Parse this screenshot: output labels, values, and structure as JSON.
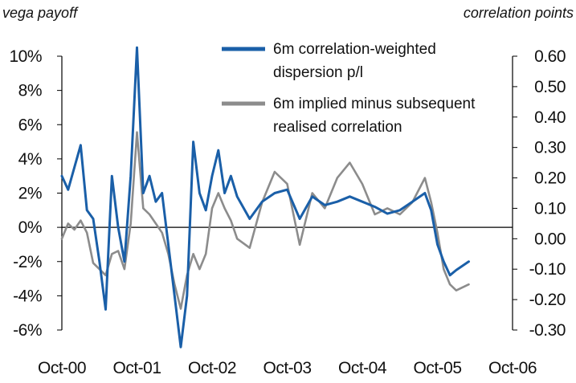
{
  "chart_data": {
    "type": "line",
    "left_axis_title": "vega payoff",
    "right_axis_title": "correlation points",
    "x_tick_labels": [
      "Oct-00",
      "Oct-01",
      "Oct-02",
      "Oct-03",
      "Oct-04",
      "Oct-05",
      "Oct-06"
    ],
    "x_range": [
      "Oct-00",
      "Oct-06"
    ],
    "y_left": {
      "range": [
        -0.06,
        0.1
      ],
      "ticks": [
        0.1,
        0.08,
        0.06,
        0.04,
        0.02,
        0.0,
        -0.02,
        -0.04,
        -0.06
      ],
      "tick_labels": [
        "10%",
        "8%",
        "6%",
        "4%",
        "2%",
        "0%",
        "-2%",
        "-4%",
        "-6%"
      ]
    },
    "y_right": {
      "range": [
        -0.3,
        0.6
      ],
      "ticks": [
        0.6,
        0.5,
        0.4,
        0.3,
        0.2,
        0.1,
        0.0,
        -0.1,
        -0.2,
        -0.3
      ],
      "tick_labels": [
        "0.60",
        "0.50",
        "0.40",
        "0.30",
        "0.20",
        "0.10",
        "0.00",
        "-0.10",
        "-0.20",
        "-0.30"
      ]
    },
    "grid": false,
    "legend_position": "top-center",
    "series": [
      {
        "name": "6m correlation-weighted dispersion p/l",
        "axis": "left",
        "color": "#1a5fa8",
        "points": [
          [
            "2000-10-01",
            0.03
          ],
          [
            "2000-11-01",
            0.022
          ],
          [
            "2000-12-01",
            0.035
          ],
          [
            "2001-01-01",
            0.048
          ],
          [
            "2001-02-01",
            0.01
          ],
          [
            "2001-03-01",
            0.005
          ],
          [
            "2001-04-01",
            -0.02
          ],
          [
            "2001-05-01",
            -0.048
          ],
          [
            "2001-06-01",
            0.03
          ],
          [
            "2001-07-01",
            0.0
          ],
          [
            "2001-08-01",
            -0.02
          ],
          [
            "2001-09-01",
            0.03
          ],
          [
            "2001-10-01",
            0.105
          ],
          [
            "2001-11-01",
            0.02
          ],
          [
            "2001-12-01",
            0.03
          ],
          [
            "2002-01-01",
            0.015
          ],
          [
            "2002-02-01",
            0.02
          ],
          [
            "2002-03-01",
            -0.01
          ],
          [
            "2002-04-01",
            -0.04
          ],
          [
            "2002-05-01",
            -0.07
          ],
          [
            "2002-06-01",
            -0.04
          ],
          [
            "2002-07-01",
            0.05
          ],
          [
            "2002-08-01",
            0.02
          ],
          [
            "2002-09-01",
            0.01
          ],
          [
            "2002-10-01",
            0.03
          ],
          [
            "2002-11-01",
            0.045
          ],
          [
            "2002-12-01",
            0.02
          ],
          [
            "2003-01-01",
            0.03
          ],
          [
            "2003-02-01",
            0.018
          ],
          [
            "2003-04-01",
            0.005
          ],
          [
            "2003-06-01",
            0.015
          ],
          [
            "2003-08-01",
            0.02
          ],
          [
            "2003-10-01",
            0.022
          ],
          [
            "2003-12-01",
            0.005
          ],
          [
            "2004-02-01",
            0.018
          ],
          [
            "2004-04-01",
            0.013
          ],
          [
            "2004-06-01",
            0.015
          ],
          [
            "2004-08-01",
            0.018
          ],
          [
            "2004-10-01",
            0.015
          ],
          [
            "2004-12-01",
            0.012
          ],
          [
            "2005-02-01",
            0.008
          ],
          [
            "2005-04-01",
            0.01
          ],
          [
            "2005-06-01",
            0.015
          ],
          [
            "2005-08-01",
            0.02
          ],
          [
            "2005-09-01",
            0.01
          ],
          [
            "2005-10-01",
            -0.01
          ],
          [
            "2005-11-01",
            -0.02
          ],
          [
            "2005-12-01",
            -0.028
          ],
          [
            "2006-01-01",
            -0.025
          ],
          [
            "2006-03-01",
            -0.02
          ]
        ]
      },
      {
        "name": "6m implied minus subsequent realised correlation",
        "axis": "right",
        "color": "#8c8c8c",
        "points": [
          [
            "2000-10-01",
            0.0
          ],
          [
            "2000-11-01",
            0.05
          ],
          [
            "2000-12-01",
            0.03
          ],
          [
            "2001-01-01",
            0.06
          ],
          [
            "2001-02-01",
            0.02
          ],
          [
            "2001-03-01",
            -0.08
          ],
          [
            "2001-04-01",
            -0.1
          ],
          [
            "2001-05-01",
            -0.12
          ],
          [
            "2001-06-01",
            -0.05
          ],
          [
            "2001-07-01",
            -0.04
          ],
          [
            "2001-08-01",
            -0.1
          ],
          [
            "2001-09-01",
            0.05
          ],
          [
            "2001-10-01",
            0.35
          ],
          [
            "2001-11-01",
            0.1
          ],
          [
            "2001-12-01",
            0.08
          ],
          [
            "2002-01-01",
            0.05
          ],
          [
            "2002-02-01",
            0.02
          ],
          [
            "2002-03-01",
            -0.05
          ],
          [
            "2002-04-01",
            -0.15
          ],
          [
            "2002-05-01",
            -0.23
          ],
          [
            "2002-06-01",
            -0.12
          ],
          [
            "2002-07-01",
            -0.05
          ],
          [
            "2002-08-01",
            -0.1
          ],
          [
            "2002-09-01",
            -0.05
          ],
          [
            "2002-10-01",
            0.1
          ],
          [
            "2002-11-01",
            0.15
          ],
          [
            "2002-12-01",
            0.1
          ],
          [
            "2003-01-01",
            0.06
          ],
          [
            "2003-02-01",
            0.0
          ],
          [
            "2003-04-01",
            -0.03
          ],
          [
            "2003-06-01",
            0.12
          ],
          [
            "2003-08-01",
            0.22
          ],
          [
            "2003-10-01",
            0.18
          ],
          [
            "2003-12-01",
            -0.02
          ],
          [
            "2004-02-01",
            0.15
          ],
          [
            "2004-04-01",
            0.1
          ],
          [
            "2004-06-01",
            0.2
          ],
          [
            "2004-08-01",
            0.25
          ],
          [
            "2004-10-01",
            0.18
          ],
          [
            "2004-12-01",
            0.08
          ],
          [
            "2005-02-01",
            0.1
          ],
          [
            "2005-04-01",
            0.08
          ],
          [
            "2005-06-01",
            0.12
          ],
          [
            "2005-08-01",
            0.2
          ],
          [
            "2005-09-01",
            0.12
          ],
          [
            "2005-10-01",
            0.02
          ],
          [
            "2005-11-01",
            -0.1
          ],
          [
            "2005-12-01",
            -0.15
          ],
          [
            "2006-01-01",
            -0.17
          ],
          [
            "2006-03-01",
            -0.15
          ]
        ]
      }
    ]
  }
}
